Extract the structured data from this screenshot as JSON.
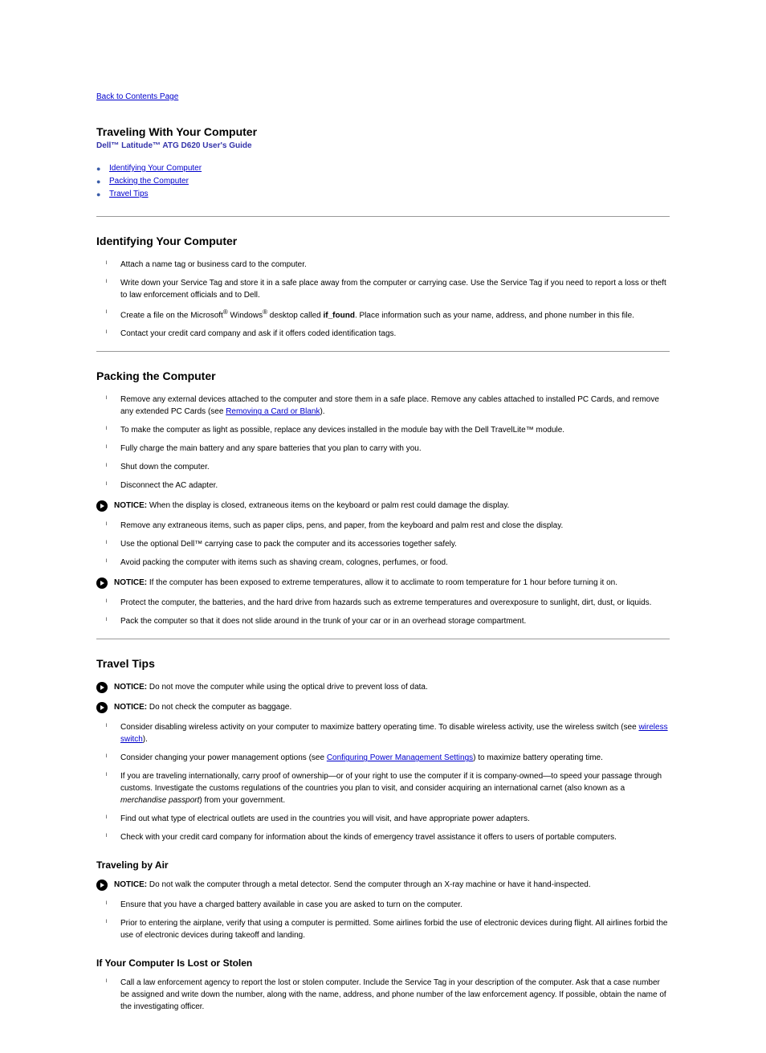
{
  "back_link": "Back to Contents Page",
  "page_title": "Traveling With Your Computer",
  "subtitle": "Dell™ Latitude™ ATG D620 User's Guide",
  "toc": [
    {
      "label": "Identifying Your Computer"
    },
    {
      "label": "Packing the Computer"
    },
    {
      "label": "Travel Tips"
    }
  ],
  "sections": [
    {
      "heading": "Identifying Your Computer",
      "items": [
        "Attach a name tag or business card to the computer.",
        "Write down your Service Tag and store it in a safe place away from the computer or carrying case. Use the Service Tag if you need to report a loss or theft to law enforcement officials and to Dell.",
        "Create a file on the Microsoft® Windows® desktop called if_found. Place information such as your name, address, and phone number in this file.",
        "Contact your credit card company and ask if it offers coded identification tags."
      ]
    },
    {
      "heading": "Packing the Computer",
      "intro_link_pre": "Remove any external devices attached to the computer and store them in a safe place. Remove any cables attached to installed PC Cards, and remove any extended PC Cards (see ",
      "intro_link": "Removing a Card or Blank",
      "intro_link_post": ").",
      "items_a": [
        "To make the computer as light as possible, replace any devices installed in the module bay with the Dell TravelLite™ module.",
        "Fully charge the main battery and any spare batteries that you plan to carry with you.",
        "Shut down the computer.",
        "Disconnect the AC adapter."
      ],
      "notice1": "When the display is closed, extraneous items on the keyboard or palm rest could damage the display.",
      "items_b": [
        "Remove any extraneous items, such as paper clips, pens, and paper, from the keyboard and palm rest and close the display.",
        "Use the optional Dell™ carrying case to pack the computer and its accessories together safely.",
        "Avoid packing the computer with items such as shaving cream, colognes, perfumes, or food."
      ],
      "notice2": "If the computer has been exposed to extreme temperatures, allow it to acclimate to room temperature for 1 hour before turning it on.",
      "items_c": [
        "Protect the computer, the batteries, and the hard drive from hazards such as extreme temperatures and overexposure to sunlight, dirt, dust, or liquids.",
        "Pack the computer so that it does not slide around in the trunk of your car or in an overhead storage compartment."
      ]
    },
    {
      "heading": "Travel Tips",
      "notice1": "Do not move the computer while using the optical drive to prevent loss of data.",
      "notice2": "Do not check the computer as baggage.",
      "items": [
        {
          "pre": "Consider disabling wireless activity on your computer to maximize battery operating time. To disable wireless activity, use the wireless switch (see ",
          "link": "wireless switch",
          "post": ")."
        },
        {
          "pre": "Consider changing your power management options (see ",
          "link": "Configuring Power Management Settings",
          "post": ") to maximize battery operating time."
        },
        {
          "text": "If you are traveling internationally, carry proof of ownership—or of your right to use the computer if it is company-owned—to speed your passage through customs. Investigate the customs regulations of the countries you plan to visit, and consider acquiring an international carnet (also known as a merchandise passport) from your government."
        },
        {
          "text": "Find out what type of electrical outlets are used in the countries you will visit, and have appropriate power adapters."
        },
        {
          "text": "Check with your credit card company for information about the kinds of emergency travel assistance it offers to users of portable computers."
        }
      ],
      "subsection_heading": "Traveling by Air",
      "sub_notice": "Do not walk the computer through a metal detector. Send the computer through an X-ray machine or have it hand-inspected.",
      "sub_item": "Ensure that you have a charged battery available in case you are asked to turn on the computer.",
      "sub_item2_pre": "Prior to entering the airplane, verify that using a computer is permitted. Some airlines forbid the use of electronic devices during flight. All airlines forbid the use of electronic devices during takeoff and landing.",
      "sub_heading2": "If Your Computer Is Lost or Stolen",
      "sub2_item1": "Call a law enforcement agency to report the lost or stolen computer. Include the Service Tag in your description of the computer. Ask that a case number be assigned and write down the number, along with the name, address, and phone number of the law enforcement agency. If possible, obtain the name of the investigating officer."
    }
  ],
  "notice_label": "NOTICE:"
}
